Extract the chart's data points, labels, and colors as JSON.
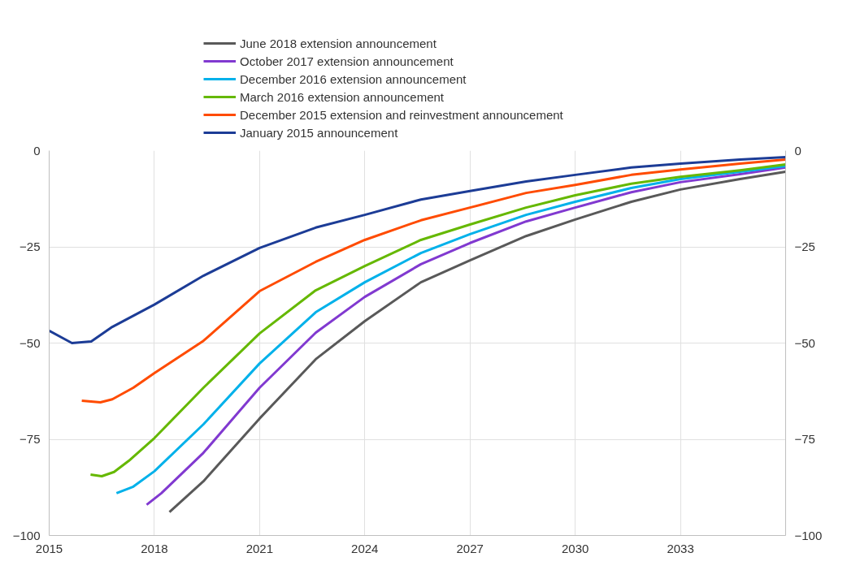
{
  "chart_data": {
    "type": "line",
    "xlim": [
      2015,
      2036
    ],
    "xticks": [
      2015,
      2018,
      2021,
      2024,
      2027,
      2030,
      2033
    ],
    "ylim": [
      -100,
      0
    ],
    "yticks": [
      -100,
      -75,
      -50,
      -25,
      0
    ],
    "y2lim": [
      -100,
      0
    ],
    "y2ticks": [
      -100,
      -75,
      -50,
      -25,
      0
    ],
    "grid": true,
    "legend": "top",
    "marker": "none",
    "line_style": "solid",
    "series": [
      {
        "name": "June 2018 extension announcement",
        "color": "#595959",
        "x": [
          2018.43,
          2019.4,
          2021,
          2022.6,
          2024,
          2025.6,
          2027,
          2028.6,
          2030,
          2031.6,
          2033,
          2034.7,
          2036
        ],
        "values": [
          -93.9,
          -85.9,
          -69.6,
          -54.2,
          -44.3,
          -34.2,
          -28.5,
          -22.2,
          -17.9,
          -13.3,
          -10.1,
          -7.4,
          -5.5
        ]
      },
      {
        "name": "October 2017 extension announcement",
        "color": "#8139d0",
        "x": [
          2017.78,
          2018.2,
          2019.4,
          2021,
          2022.6,
          2024,
          2025.6,
          2027,
          2028.6,
          2030,
          2031.6,
          2033,
          2034.7,
          2036
        ],
        "values": [
          -92,
          -89,
          -78.5,
          -61.6,
          -47.3,
          -38,
          -29.5,
          -24,
          -18.4,
          -14.8,
          -10.8,
          -8.2,
          -6.1,
          -4.4
        ]
      },
      {
        "name": "December 2016 extension announcement",
        "color": "#00b1ea",
        "x": [
          2016.92,
          2017.4,
          2018,
          2019.4,
          2021,
          2022.6,
          2024,
          2025.6,
          2027,
          2028.6,
          2030,
          2031.6,
          2033,
          2034.7,
          2036
        ],
        "values": [
          -89,
          -87.3,
          -83.3,
          -71.1,
          -55.3,
          -42,
          -34.2,
          -26.6,
          -21.7,
          -16.7,
          -13.3,
          -9.7,
          -7.4,
          -5.5,
          -4
        ]
      },
      {
        "name": "March 2016 extension announcement",
        "color": "#65b800",
        "x": [
          2016.18,
          2016.5,
          2016.85,
          2017.27,
          2018,
          2019.4,
          2021,
          2022.6,
          2024,
          2025.6,
          2027,
          2028.6,
          2030,
          2031.6,
          2033,
          2034.7,
          2036
        ],
        "values": [
          -84.2,
          -84.6,
          -83.5,
          -80.6,
          -74.7,
          -61.6,
          -47.5,
          -36.3,
          -30,
          -23.2,
          -19.2,
          -14.8,
          -11.6,
          -8.6,
          -6.8,
          -5.1,
          -3.6
        ]
      },
      {
        "name": "December 2015 extension and reinvestment announcement",
        "color": "#ff4b00",
        "x": [
          2015.93,
          2016.46,
          2016.8,
          2017.4,
          2018,
          2019.4,
          2021,
          2022.6,
          2024,
          2025.6,
          2027,
          2028.6,
          2030,
          2031.6,
          2033,
          2034.7,
          2036
        ],
        "values": [
          -65,
          -65.4,
          -64.6,
          -61.6,
          -57.8,
          -49.4,
          -36.5,
          -28.9,
          -23.2,
          -18.1,
          -14.8,
          -11,
          -8.9,
          -6.3,
          -4.9,
          -3.4,
          -2.3
        ]
      },
      {
        "name": "January 2015 announcement",
        "color": "#1c3c96",
        "x": [
          2015,
          2015.65,
          2016.2,
          2016.8,
          2018,
          2019.4,
          2021,
          2022.6,
          2024,
          2025.6,
          2027,
          2028.6,
          2030,
          2031.6,
          2033,
          2034.7,
          2036
        ],
        "values": [
          -46.8,
          -50,
          -49.6,
          -45.8,
          -40,
          -32.5,
          -25.3,
          -20,
          -16.7,
          -12.7,
          -10.5,
          -8,
          -6.3,
          -4.4,
          -3.4,
          -2.3,
          -1.7
        ]
      }
    ]
  }
}
